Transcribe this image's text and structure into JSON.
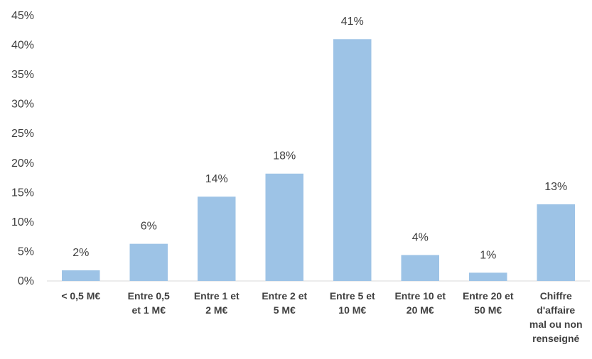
{
  "chart_data": {
    "type": "bar",
    "title": "",
    "xlabel": "",
    "ylabel": "",
    "ylim": [
      0,
      45
    ],
    "yticks": [
      0,
      5,
      10,
      15,
      20,
      25,
      30,
      35,
      40,
      45
    ],
    "ytick_labels": [
      "0%",
      "5%",
      "10%",
      "15%",
      "20%",
      "25%",
      "30%",
      "35%",
      "40%",
      "45%"
    ],
    "grid": false,
    "legend": "none",
    "bar_color": "#9dc3e6",
    "categories": [
      "< 0,5 M€",
      "Entre 0,5 et 1 M€",
      "Entre 1 et 2 M€",
      "Entre 2 et 5 M€",
      "Entre 5 et 10 M€",
      "Entre 10 et 20 M€",
      "Entre 20 et 50 M€",
      "Chiffre d'affaire mal ou non renseigné"
    ],
    "category_lines": [
      [
        "< 0,5 M€"
      ],
      [
        "Entre 0,5",
        "et 1 M€"
      ],
      [
        "Entre 1 et",
        "2 M€"
      ],
      [
        "Entre 2 et",
        "5 M€"
      ],
      [
        "Entre 5 et",
        "10 M€"
      ],
      [
        "Entre 10 et",
        "20 M€"
      ],
      [
        "Entre 20 et",
        "50 M€"
      ],
      [
        "Chiffre",
        "d'affaire",
        "mal ou non",
        "renseigné"
      ]
    ],
    "values": [
      1.8,
      6.3,
      14.3,
      18.2,
      41,
      4.4,
      1.4,
      13
    ],
    "data_labels": [
      "2%",
      "6%",
      "14%",
      "18%",
      "41%",
      "4%",
      "1%",
      "13%"
    ]
  }
}
